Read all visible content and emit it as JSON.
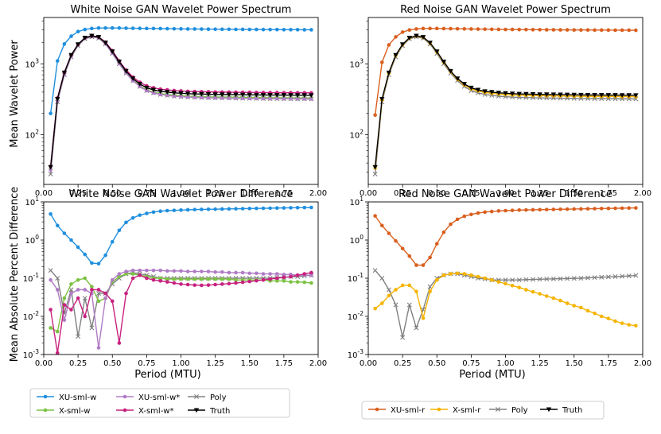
{
  "figure": {
    "ylabel_top": "Mean Wavelet Power",
    "ylabel_bottom": "Mean Absolute Percent Difference",
    "xlabel": "Period (MTU)"
  },
  "legends": {
    "left": [
      "XU-sml-w",
      "X-sml-w",
      "XU-sml-w*",
      "X-sml-w*",
      "Poly",
      "Truth"
    ],
    "right": [
      "XU-sml-r",
      "X-sml-r",
      "Poly",
      "Truth"
    ]
  },
  "colors": {
    "XU-sml-w": "#1f8fde",
    "X-sml-w": "#7cc242",
    "XU-sml-w*": "#b07cc6",
    "X-sml-w*": "#c8217f",
    "Poly": "#808080",
    "Truth": "#000000",
    "XU-sml-r": "#d95f1e",
    "X-sml-r": "#f5b400"
  },
  "chart_data": [
    {
      "id": "tl",
      "type": "line",
      "title": "White Noise GAN Wavelet Power Spectrum",
      "yscale": "log",
      "ylim": [
        20,
        4500
      ],
      "xlim": [
        0.0,
        2.0
      ],
      "xticks": [
        "0.00",
        "0.25",
        "0.50",
        "0.75",
        "1.00",
        "1.25",
        "1.50",
        "1.75",
        "2.00"
      ],
      "yticks": [
        {
          "v": 100,
          "label": "10^2"
        },
        {
          "v": 1000,
          "label": "10^3"
        }
      ],
      "x": [
        0.05,
        0.1,
        0.15,
        0.2,
        0.25,
        0.3,
        0.35,
        0.4,
        0.45,
        0.5,
        0.55,
        0.6,
        0.65,
        0.7,
        0.75,
        0.8,
        0.85,
        0.9,
        0.95,
        1.0,
        1.05,
        1.1,
        1.15,
        1.2,
        1.25,
        1.3,
        1.35,
        1.4,
        1.45,
        1.5,
        1.55,
        1.6,
        1.65,
        1.7,
        1.75,
        1.8,
        1.85,
        1.9,
        1.95
      ],
      "series": [
        {
          "name": "XU-sml-w",
          "marker": "o",
          "values": [
            200,
            1100,
            1900,
            2450,
            2850,
            3050,
            3150,
            3200,
            3200,
            3200,
            3200,
            3180,
            3170,
            3160,
            3150,
            3150,
            3140,
            3130,
            3120,
            3110,
            3100,
            3100,
            3090,
            3080,
            3080,
            3070,
            3070,
            3060,
            3060,
            3050,
            3050,
            3040,
            3040,
            3040,
            3030,
            3030,
            3030,
            3020,
            3020
          ]
        },
        {
          "name": "Poly",
          "marker": "x",
          "values": [
            28,
            290,
            700,
            1250,
            1800,
            2250,
            2400,
            2300,
            1900,
            1400,
            1000,
            740,
            580,
            480,
            420,
            390,
            370,
            360,
            350,
            345,
            340,
            337,
            335,
            333,
            331,
            330,
            329,
            328,
            327,
            326,
            325,
            324,
            323,
            323,
            322,
            322,
            321,
            321,
            320
          ]
        },
        {
          "name": "X-sml-w",
          "marker": "o",
          "values": [
            33,
            305,
            730,
            1300,
            1850,
            2300,
            2450,
            2350,
            1950,
            1450,
            1030,
            760,
            590,
            490,
            430,
            400,
            380,
            370,
            360,
            355,
            350,
            347,
            345,
            343,
            341,
            340,
            339,
            338,
            337,
            336,
            335,
            334,
            333,
            333,
            332,
            332,
            331,
            331,
            330
          ]
        },
        {
          "name": "XU-sml-w*",
          "marker": "o",
          "values": [
            32,
            300,
            720,
            1290,
            1840,
            2290,
            2440,
            2340,
            1920,
            1420,
            1010,
            750,
            580,
            480,
            420,
            390,
            370,
            360,
            350,
            345,
            340,
            337,
            335,
            333,
            331,
            330,
            329,
            328,
            327,
            326,
            325,
            324,
            323,
            323,
            322,
            322,
            321,
            321,
            320
          ]
        },
        {
          "name": "X-sml-w*",
          "marker": "o",
          "values": [
            36,
            330,
            760,
            1330,
            1880,
            2330,
            2480,
            2400,
            2020,
            1530,
            1100,
            820,
            650,
            550,
            490,
            460,
            440,
            430,
            420,
            415,
            410,
            407,
            405,
            403,
            401,
            400,
            399,
            398,
            397,
            396,
            395,
            394,
            393,
            393,
            392,
            392,
            391,
            391,
            390
          ]
        },
        {
          "name": "Truth",
          "marker": "v",
          "values": [
            35,
            320,
            750,
            1330,
            1880,
            2330,
            2480,
            2380,
            1980,
            1490,
            1070,
            790,
            620,
            520,
            460,
            430,
            410,
            400,
            390,
            385,
            380,
            377,
            375,
            373,
            371,
            370,
            369,
            368,
            367,
            366,
            365,
            364,
            363,
            363,
            362,
            362,
            361,
            361,
            360
          ]
        }
      ]
    },
    {
      "id": "tr",
      "type": "line",
      "title": "Red Noise GAN Wavelet Power Spectrum",
      "yscale": "log",
      "ylim": [
        20,
        4500
      ],
      "xlim": [
        0.0,
        2.0
      ],
      "xticks": [
        "0.00",
        "0.25",
        "0.50",
        "0.75",
        "1.00",
        "1.25",
        "1.50",
        "1.75",
        "2.00"
      ],
      "yticks": [
        {
          "v": 100,
          "label": "10^2"
        },
        {
          "v": 1000,
          "label": "10^3"
        }
      ],
      "x": [
        0.05,
        0.1,
        0.15,
        0.2,
        0.25,
        0.3,
        0.35,
        0.4,
        0.45,
        0.5,
        0.55,
        0.6,
        0.65,
        0.7,
        0.75,
        0.8,
        0.85,
        0.9,
        0.95,
        1.0,
        1.05,
        1.1,
        1.15,
        1.2,
        1.25,
        1.3,
        1.35,
        1.4,
        1.45,
        1.5,
        1.55,
        1.6,
        1.65,
        1.7,
        1.75,
        1.8,
        1.85,
        1.9,
        1.95
      ],
      "series": [
        {
          "name": "XU-sml-r",
          "marker": "o",
          "values": [
            190,
            1050,
            1850,
            2400,
            2800,
            3000,
            3100,
            3150,
            3150,
            3150,
            3140,
            3130,
            3120,
            3110,
            3100,
            3090,
            3080,
            3070,
            3060,
            3050,
            3050,
            3040,
            3040,
            3030,
            3030,
            3020,
            3020,
            3010,
            3010,
            3000,
            3000,
            3000,
            2990,
            2990,
            2990,
            2980,
            2980,
            2980,
            2970
          ]
        },
        {
          "name": "Poly",
          "marker": "x",
          "values": [
            28,
            290,
            700,
            1250,
            1800,
            2250,
            2400,
            2300,
            1900,
            1400,
            1000,
            740,
            580,
            480,
            420,
            390,
            370,
            360,
            350,
            345,
            340,
            337,
            335,
            333,
            331,
            330,
            329,
            328,
            327,
            326,
            325,
            324,
            323,
            323,
            322,
            322,
            321,
            321,
            320
          ]
        },
        {
          "name": "X-sml-r",
          "marker": "o",
          "values": [
            34,
            310,
            740,
            1310,
            1860,
            2310,
            2460,
            2360,
            1960,
            1470,
            1050,
            775,
            605,
            505,
            445,
            415,
            395,
            385,
            375,
            370,
            365,
            362,
            360,
            358,
            356,
            355,
            354,
            353,
            352,
            351,
            350,
            349,
            348,
            348,
            347,
            347,
            346,
            346,
            345
          ]
        },
        {
          "name": "Truth",
          "marker": "v",
          "values": [
            35,
            320,
            750,
            1330,
            1880,
            2330,
            2480,
            2380,
            1980,
            1490,
            1070,
            790,
            620,
            520,
            460,
            430,
            410,
            400,
            390,
            385,
            380,
            377,
            375,
            373,
            371,
            370,
            369,
            368,
            367,
            366,
            365,
            364,
            363,
            363,
            362,
            362,
            361,
            361,
            360
          ]
        }
      ]
    },
    {
      "id": "bl",
      "type": "line",
      "title": "White Noise GAN Wavelet Power Difference",
      "yscale": "log",
      "ylim": [
        0.001,
        10
      ],
      "xlim": [
        0.0,
        2.0
      ],
      "xticks": [
        "0.00",
        "0.25",
        "0.50",
        "0.75",
        "1.00",
        "1.25",
        "1.50",
        "1.75",
        "2.00"
      ],
      "yticks": [
        {
          "v": 0.001,
          "label": "10^-3"
        },
        {
          "v": 0.01,
          "label": "10^-2"
        },
        {
          "v": 0.1,
          "label": "10^-1"
        },
        {
          "v": 1,
          "label": "10^0"
        },
        {
          "v": 10,
          "label": "10^1"
        }
      ],
      "x": [
        0.05,
        0.1,
        0.15,
        0.2,
        0.25,
        0.3,
        0.35,
        0.4,
        0.45,
        0.5,
        0.55,
        0.6,
        0.65,
        0.7,
        0.75,
        0.8,
        0.85,
        0.9,
        0.95,
        1.0,
        1.05,
        1.1,
        1.15,
        1.2,
        1.25,
        1.3,
        1.35,
        1.4,
        1.45,
        1.5,
        1.55,
        1.6,
        1.65,
        1.7,
        1.75,
        1.8,
        1.85,
        1.9,
        1.95
      ],
      "series": [
        {
          "name": "XU-sml-w",
          "marker": "o",
          "values": [
            4.8,
            2.4,
            1.5,
            1.0,
            0.65,
            0.42,
            0.25,
            0.24,
            0.4,
            0.9,
            1.8,
            2.9,
            3.8,
            4.5,
            5.0,
            5.4,
            5.7,
            5.9,
            6.0,
            6.1,
            6.2,
            6.3,
            6.35,
            6.4,
            6.45,
            6.5,
            6.55,
            6.6,
            6.65,
            6.7,
            6.75,
            6.8,
            6.85,
            6.9,
            6.95,
            7.0,
            7.05,
            7.1,
            7.15
          ]
        },
        {
          "name": "Poly",
          "marker": "x",
          "values": [
            0.16,
            0.1,
            0.012,
            0.05,
            0.003,
            0.03,
            0.005,
            0.04,
            0.04,
            0.07,
            0.1,
            0.13,
            0.14,
            0.13,
            0.12,
            0.11,
            0.1,
            0.1,
            0.1,
            0.1,
            0.1,
            0.1,
            0.1,
            0.1,
            0.1,
            0.1,
            0.1,
            0.1,
            0.1,
            0.1,
            0.1,
            0.1,
            0.1,
            0.105,
            0.105,
            0.11,
            0.11,
            0.115,
            0.12
          ]
        },
        {
          "name": "X-sml-w",
          "marker": "o",
          "values": [
            0.005,
            0.004,
            0.03,
            0.07,
            0.09,
            0.1,
            0.06,
            0.025,
            0.03,
            0.08,
            0.11,
            0.13,
            0.13,
            0.12,
            0.11,
            0.1,
            0.1,
            0.095,
            0.095,
            0.095,
            0.095,
            0.095,
            0.095,
            0.095,
            0.095,
            0.095,
            0.095,
            0.09,
            0.09,
            0.09,
            0.09,
            0.09,
            0.085,
            0.085,
            0.085,
            0.08,
            0.08,
            0.078,
            0.075
          ]
        },
        {
          "name": "XU-sml-w*",
          "marker": "o",
          "values": [
            0.09,
            0.05,
            0.008,
            0.04,
            0.05,
            0.05,
            0.04,
            0.0015,
            0.03,
            0.09,
            0.13,
            0.15,
            0.16,
            0.16,
            0.16,
            0.16,
            0.16,
            0.155,
            0.155,
            0.155,
            0.15,
            0.15,
            0.15,
            0.15,
            0.145,
            0.145,
            0.14,
            0.14,
            0.14,
            0.135,
            0.135,
            0.13,
            0.13,
            0.13,
            0.125,
            0.125,
            0.12,
            0.12,
            0.12
          ]
        },
        {
          "name": "X-sml-w*",
          "marker": "o",
          "values": [
            0.015,
            0.0011,
            0.02,
            0.015,
            0.03,
            0.01,
            0.05,
            0.05,
            0.04,
            0.025,
            0.002,
            0.04,
            0.1,
            0.12,
            0.1,
            0.09,
            0.085,
            0.08,
            0.075,
            0.07,
            0.068,
            0.066,
            0.065,
            0.066,
            0.068,
            0.07,
            0.072,
            0.075,
            0.078,
            0.082,
            0.086,
            0.09,
            0.095,
            0.1,
            0.105,
            0.11,
            0.12,
            0.13,
            0.14
          ]
        }
      ]
    },
    {
      "id": "br",
      "type": "line",
      "title": "Red Noise GAN Wavelet Power Difference",
      "yscale": "log",
      "ylim": [
        0.001,
        10
      ],
      "xlim": [
        0.0,
        2.0
      ],
      "xticks": [
        "0.00",
        "0.25",
        "0.50",
        "0.75",
        "1.00",
        "1.25",
        "1.50",
        "1.75",
        "2.00"
      ],
      "yticks": [
        {
          "v": 0.001,
          "label": "10^-3"
        },
        {
          "v": 0.01,
          "label": "10^-2"
        },
        {
          "v": 0.1,
          "label": "10^-1"
        },
        {
          "v": 1,
          "label": "10^0"
        },
        {
          "v": 10,
          "label": "10^1"
        }
      ],
      "x": [
        0.05,
        0.1,
        0.15,
        0.2,
        0.25,
        0.3,
        0.35,
        0.4,
        0.45,
        0.5,
        0.55,
        0.6,
        0.65,
        0.7,
        0.75,
        0.8,
        0.85,
        0.9,
        0.95,
        1.0,
        1.05,
        1.1,
        1.15,
        1.2,
        1.25,
        1.3,
        1.35,
        1.4,
        1.45,
        1.5,
        1.55,
        1.6,
        1.65,
        1.7,
        1.75,
        1.8,
        1.85,
        1.9,
        1.95
      ],
      "series": [
        {
          "name": "XU-sml-r",
          "marker": "o",
          "values": [
            4.3,
            2.4,
            1.5,
            0.95,
            0.6,
            0.38,
            0.22,
            0.22,
            0.35,
            0.8,
            1.6,
            2.6,
            3.5,
            4.2,
            4.7,
            5.1,
            5.4,
            5.6,
            5.8,
            5.9,
            6.0,
            6.1,
            6.15,
            6.2,
            6.25,
            6.3,
            6.35,
            6.4,
            6.45,
            6.5,
            6.55,
            6.6,
            6.65,
            6.7,
            6.75,
            6.8,
            6.85,
            6.9,
            6.95
          ]
        },
        {
          "name": "Poly",
          "marker": "x",
          "values": [
            0.16,
            0.1,
            0.05,
            0.02,
            0.0028,
            0.02,
            0.005,
            0.015,
            0.06,
            0.1,
            0.12,
            0.13,
            0.13,
            0.12,
            0.11,
            0.1,
            0.095,
            0.09,
            0.09,
            0.09,
            0.09,
            0.09,
            0.092,
            0.093,
            0.094,
            0.095,
            0.096,
            0.097,
            0.098,
            0.099,
            0.1,
            0.102,
            0.104,
            0.106,
            0.108,
            0.11,
            0.112,
            0.115,
            0.118
          ]
        },
        {
          "name": "X-sml-r",
          "marker": "o",
          "values": [
            0.016,
            0.022,
            0.035,
            0.05,
            0.065,
            0.065,
            0.045,
            0.009,
            0.045,
            0.09,
            0.12,
            0.13,
            0.135,
            0.13,
            0.12,
            0.11,
            0.1,
            0.09,
            0.08,
            0.072,
            0.064,
            0.057,
            0.05,
            0.044,
            0.039,
            0.034,
            0.03,
            0.026,
            0.022,
            0.019,
            0.017,
            0.014,
            0.012,
            0.01,
            0.0088,
            0.0075,
            0.0066,
            0.006,
            0.0057
          ]
        }
      ]
    }
  ]
}
